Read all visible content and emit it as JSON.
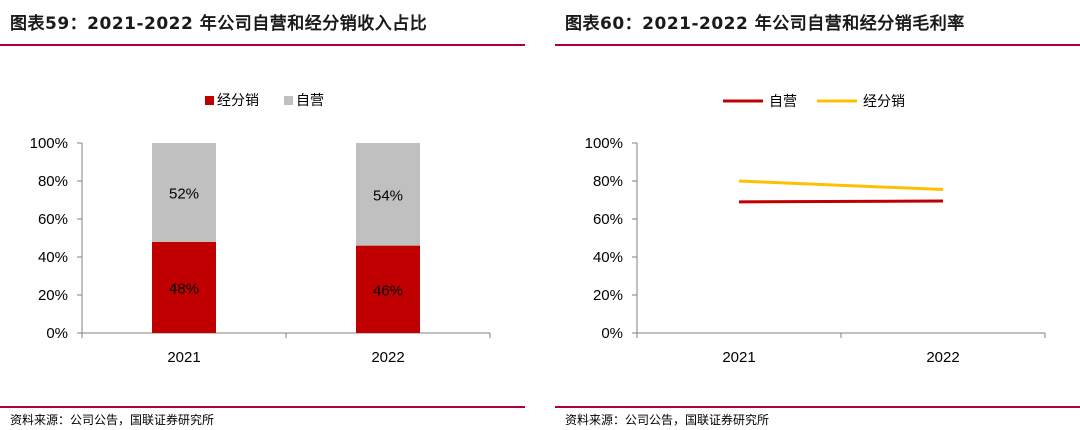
{
  "panels": [
    {
      "title": "图表59：2021-2022 年公司自营和经分销收入占比",
      "source": "资料来源：公司公告，国联证券研究所"
    },
    {
      "title": "图表60：2021-2022 年公司自营和经分销毛利率",
      "source": "资料来源：公司公告，国联证券研究所"
    }
  ],
  "chart_data": [
    {
      "type": "bar",
      "stacked": true,
      "categories": [
        "2021",
        "2022"
      ],
      "series": [
        {
          "name": "经分销",
          "values": [
            48,
            46
          ],
          "labels": [
            "48%",
            "46%"
          ],
          "color": "#c00000"
        },
        {
          "name": "自营",
          "values": [
            52,
            54
          ],
          "labels": [
            "52%",
            "54%"
          ],
          "color": "#c0c0c0"
        }
      ],
      "ylim": [
        0,
        100
      ],
      "yticks": [
        "0%",
        "20%",
        "40%",
        "60%",
        "80%",
        "100%"
      ],
      "legend_position": "top-center",
      "grid": false
    },
    {
      "type": "line",
      "categories": [
        "2021",
        "2022"
      ],
      "series": [
        {
          "name": "自营",
          "values": [
            69,
            69.5
          ],
          "color": "#c00000"
        },
        {
          "name": "经分销",
          "values": [
            80,
            75.5
          ],
          "color": "#ffc000"
        }
      ],
      "ylim": [
        0,
        100
      ],
      "yticks": [
        "0%",
        "20%",
        "40%",
        "60%",
        "80%",
        "100%"
      ],
      "legend_position": "top-center",
      "grid": false
    }
  ]
}
